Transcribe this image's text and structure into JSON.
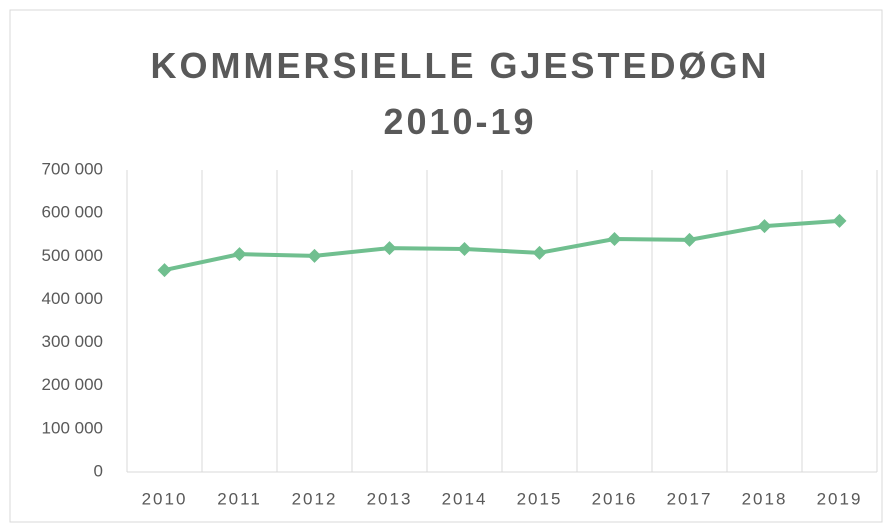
{
  "chart_data": {
    "type": "line",
    "title": "KOMMERSIELLE GJESTEDØGN 2010-19",
    "categories": [
      "2010",
      "2011",
      "2012",
      "2013",
      "2014",
      "2015",
      "2016",
      "2017",
      "2018",
      "2019"
    ],
    "series": [
      {
        "name": "Kommersielle gjestedøgn",
        "color": "#70bf8f",
        "values": [
          468000,
          505000,
          501000,
          519000,
          517000,
          508000,
          540000,
          538000,
          570000,
          582000
        ]
      }
    ],
    "ylim": [
      0,
      700000
    ],
    "yticks": [
      0,
      {
        "value": 100000,
        "label": "100 000"
      },
      {
        "value": 200000,
        "label": "200 000"
      },
      {
        "value": 300000,
        "label": "300 000"
      },
      {
        "value": 400000,
        "label": "400 000"
      },
      {
        "value": 500000,
        "label": "500 000"
      },
      {
        "value": 600000,
        "label": "600 000"
      },
      {
        "value": 700000,
        "label": "700 000"
      }
    ],
    "grid": "x"
  }
}
